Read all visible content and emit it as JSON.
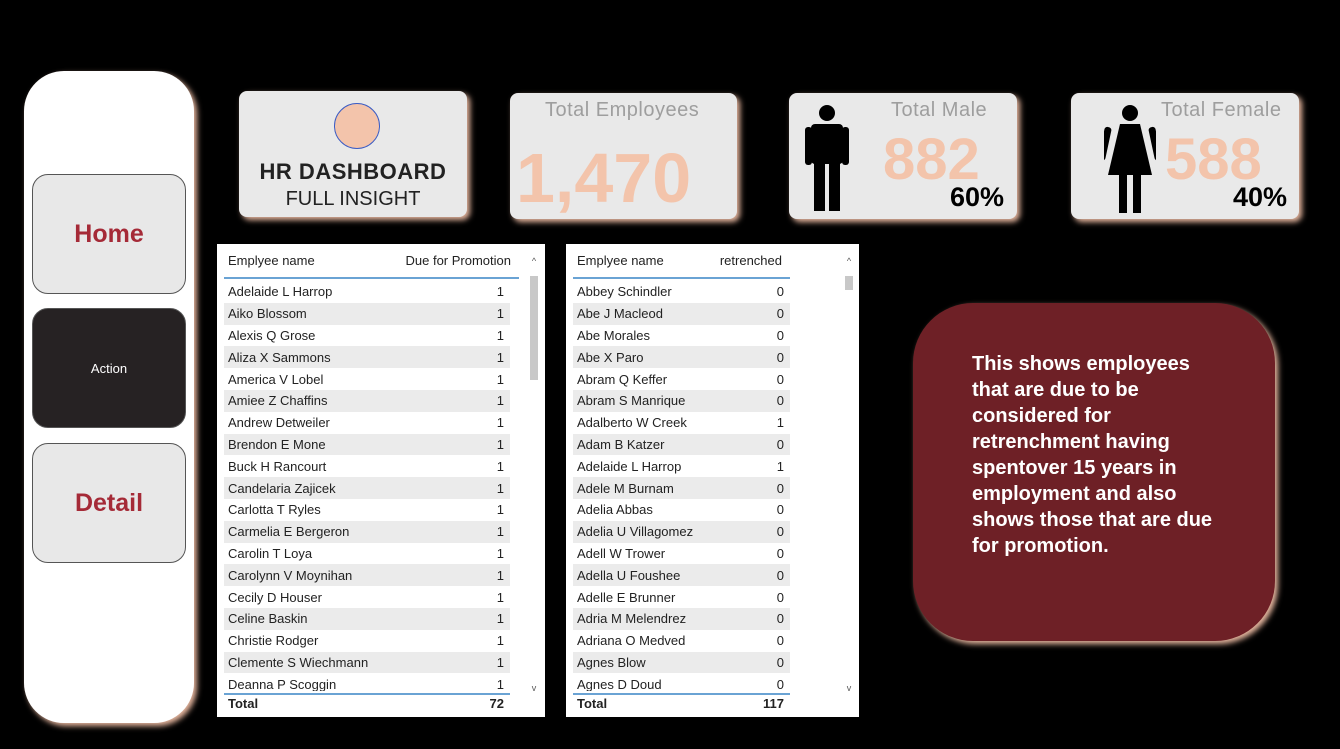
{
  "nav": {
    "home_label": "Home",
    "action_label": "Action",
    "detail_label": "Detail"
  },
  "header": {
    "title": "HR DASHBOARD",
    "subtitle": "FULL INSIGHT"
  },
  "kpis": {
    "total_employees": {
      "label": "Total Employees",
      "value": "1,470"
    },
    "total_male": {
      "label": "Total Male",
      "value": "882",
      "percent": "60%"
    },
    "total_female": {
      "label": "Total Female",
      "value": "588",
      "percent": "40%"
    }
  },
  "promotion_table": {
    "col_name": "Emplyee name",
    "col_value": "Due for Promotion",
    "rows": [
      [
        "Adelaide L Harrop",
        "1"
      ],
      [
        "Aiko Blossom",
        "1"
      ],
      [
        "Alexis Q Grose",
        "1"
      ],
      [
        "Aliza X Sammons",
        "1"
      ],
      [
        "America V Lobel",
        "1"
      ],
      [
        "Amiee Z Chaffins",
        "1"
      ],
      [
        "Andrew Detweiler",
        "1"
      ],
      [
        "Brendon E Mone",
        "1"
      ],
      [
        "Buck H Rancourt",
        "1"
      ],
      [
        "Candelaria Zajicek",
        "1"
      ],
      [
        "Carlotta T Ryles",
        "1"
      ],
      [
        "Carmelia E Bergeron",
        "1"
      ],
      [
        "Carolin T Loya",
        "1"
      ],
      [
        "Carolynn V Moynihan",
        "1"
      ],
      [
        "Cecily D Houser",
        "1"
      ],
      [
        "Celine Baskin",
        "1"
      ],
      [
        "Christie Rodger",
        "1"
      ],
      [
        "Clemente S Wiechmann",
        "1"
      ],
      [
        "Deanna P Scoggin",
        "1"
      ]
    ],
    "total_label": "Total",
    "total_value": "72"
  },
  "retrench_table": {
    "col_name": "Emplyee name",
    "col_value": "retrenched",
    "rows": [
      [
        "Abbey Schindler",
        "0"
      ],
      [
        "Abe J Macleod",
        "0"
      ],
      [
        "Abe Morales",
        "0"
      ],
      [
        "Abe X Paro",
        "0"
      ],
      [
        "Abram Q Keffer",
        "0"
      ],
      [
        "Abram S Manrique",
        "0"
      ],
      [
        "Adalberto W Creek",
        "1"
      ],
      [
        "Adam B Katzer",
        "0"
      ],
      [
        "Adelaide L Harrop",
        "1"
      ],
      [
        "Adele M Burnam",
        "0"
      ],
      [
        "Adelia Abbas",
        "0"
      ],
      [
        "Adelia U Villagomez",
        "0"
      ],
      [
        "Adell W Trower",
        "0"
      ],
      [
        "Adella U Foushee",
        "0"
      ],
      [
        "Adelle E Brunner",
        "0"
      ],
      [
        "Adria M Melendrez",
        "0"
      ],
      [
        "Adriana O Medved",
        "0"
      ],
      [
        "Agnes Blow",
        "0"
      ],
      [
        "Agnes D Doud",
        "0"
      ]
    ],
    "total_label": "Total",
    "total_value": "117"
  },
  "info_text": "This shows employees that are due to be considered for retrenchment having spentover 15 years in employment and also shows those that are due for promotion.",
  "colors": {
    "accent": "#f3c4ab",
    "brand_red": "#a52a37",
    "info_bg": "#6e2026",
    "table_rule": "#6aa3d4"
  }
}
